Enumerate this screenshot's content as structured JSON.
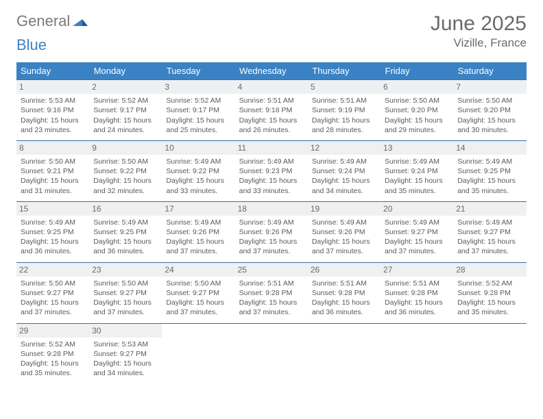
{
  "brand": {
    "name_a": "General",
    "name_b": "Blue"
  },
  "title": "June 2025",
  "location": "Vizille, France",
  "colors": {
    "header_bg": "#3a82c4",
    "header_text": "#ffffff",
    "daynum_bg": "#eef0f1",
    "row_border": "#3a6ea5",
    "text": "#5a5a5a",
    "title": "#6a6a6a"
  },
  "dow": [
    "Sunday",
    "Monday",
    "Tuesday",
    "Wednesday",
    "Thursday",
    "Friday",
    "Saturday"
  ],
  "weeks": [
    [
      {
        "d": "1",
        "sr": "Sunrise: 5:53 AM",
        "ss": "Sunset: 9:16 PM",
        "dl1": "Daylight: 15 hours",
        "dl2": "and 23 minutes."
      },
      {
        "d": "2",
        "sr": "Sunrise: 5:52 AM",
        "ss": "Sunset: 9:17 PM",
        "dl1": "Daylight: 15 hours",
        "dl2": "and 24 minutes."
      },
      {
        "d": "3",
        "sr": "Sunrise: 5:52 AM",
        "ss": "Sunset: 9:17 PM",
        "dl1": "Daylight: 15 hours",
        "dl2": "and 25 minutes."
      },
      {
        "d": "4",
        "sr": "Sunrise: 5:51 AM",
        "ss": "Sunset: 9:18 PM",
        "dl1": "Daylight: 15 hours",
        "dl2": "and 26 minutes."
      },
      {
        "d": "5",
        "sr": "Sunrise: 5:51 AM",
        "ss": "Sunset: 9:19 PM",
        "dl1": "Daylight: 15 hours",
        "dl2": "and 28 minutes."
      },
      {
        "d": "6",
        "sr": "Sunrise: 5:50 AM",
        "ss": "Sunset: 9:20 PM",
        "dl1": "Daylight: 15 hours",
        "dl2": "and 29 minutes."
      },
      {
        "d": "7",
        "sr": "Sunrise: 5:50 AM",
        "ss": "Sunset: 9:20 PM",
        "dl1": "Daylight: 15 hours",
        "dl2": "and 30 minutes."
      }
    ],
    [
      {
        "d": "8",
        "sr": "Sunrise: 5:50 AM",
        "ss": "Sunset: 9:21 PM",
        "dl1": "Daylight: 15 hours",
        "dl2": "and 31 minutes."
      },
      {
        "d": "9",
        "sr": "Sunrise: 5:50 AM",
        "ss": "Sunset: 9:22 PM",
        "dl1": "Daylight: 15 hours",
        "dl2": "and 32 minutes."
      },
      {
        "d": "10",
        "sr": "Sunrise: 5:49 AM",
        "ss": "Sunset: 9:22 PM",
        "dl1": "Daylight: 15 hours",
        "dl2": "and 33 minutes."
      },
      {
        "d": "11",
        "sr": "Sunrise: 5:49 AM",
        "ss": "Sunset: 9:23 PM",
        "dl1": "Daylight: 15 hours",
        "dl2": "and 33 minutes."
      },
      {
        "d": "12",
        "sr": "Sunrise: 5:49 AM",
        "ss": "Sunset: 9:24 PM",
        "dl1": "Daylight: 15 hours",
        "dl2": "and 34 minutes."
      },
      {
        "d": "13",
        "sr": "Sunrise: 5:49 AM",
        "ss": "Sunset: 9:24 PM",
        "dl1": "Daylight: 15 hours",
        "dl2": "and 35 minutes."
      },
      {
        "d": "14",
        "sr": "Sunrise: 5:49 AM",
        "ss": "Sunset: 9:25 PM",
        "dl1": "Daylight: 15 hours",
        "dl2": "and 35 minutes."
      }
    ],
    [
      {
        "d": "15",
        "sr": "Sunrise: 5:49 AM",
        "ss": "Sunset: 9:25 PM",
        "dl1": "Daylight: 15 hours",
        "dl2": "and 36 minutes."
      },
      {
        "d": "16",
        "sr": "Sunrise: 5:49 AM",
        "ss": "Sunset: 9:25 PM",
        "dl1": "Daylight: 15 hours",
        "dl2": "and 36 minutes."
      },
      {
        "d": "17",
        "sr": "Sunrise: 5:49 AM",
        "ss": "Sunset: 9:26 PM",
        "dl1": "Daylight: 15 hours",
        "dl2": "and 37 minutes."
      },
      {
        "d": "18",
        "sr": "Sunrise: 5:49 AM",
        "ss": "Sunset: 9:26 PM",
        "dl1": "Daylight: 15 hours",
        "dl2": "and 37 minutes."
      },
      {
        "d": "19",
        "sr": "Sunrise: 5:49 AM",
        "ss": "Sunset: 9:26 PM",
        "dl1": "Daylight: 15 hours",
        "dl2": "and 37 minutes."
      },
      {
        "d": "20",
        "sr": "Sunrise: 5:49 AM",
        "ss": "Sunset: 9:27 PM",
        "dl1": "Daylight: 15 hours",
        "dl2": "and 37 minutes."
      },
      {
        "d": "21",
        "sr": "Sunrise: 5:49 AM",
        "ss": "Sunset: 9:27 PM",
        "dl1": "Daylight: 15 hours",
        "dl2": "and 37 minutes."
      }
    ],
    [
      {
        "d": "22",
        "sr": "Sunrise: 5:50 AM",
        "ss": "Sunset: 9:27 PM",
        "dl1": "Daylight: 15 hours",
        "dl2": "and 37 minutes."
      },
      {
        "d": "23",
        "sr": "Sunrise: 5:50 AM",
        "ss": "Sunset: 9:27 PM",
        "dl1": "Daylight: 15 hours",
        "dl2": "and 37 minutes."
      },
      {
        "d": "24",
        "sr": "Sunrise: 5:50 AM",
        "ss": "Sunset: 9:27 PM",
        "dl1": "Daylight: 15 hours",
        "dl2": "and 37 minutes."
      },
      {
        "d": "25",
        "sr": "Sunrise: 5:51 AM",
        "ss": "Sunset: 9:28 PM",
        "dl1": "Daylight: 15 hours",
        "dl2": "and 37 minutes."
      },
      {
        "d": "26",
        "sr": "Sunrise: 5:51 AM",
        "ss": "Sunset: 9:28 PM",
        "dl1": "Daylight: 15 hours",
        "dl2": "and 36 minutes."
      },
      {
        "d": "27",
        "sr": "Sunrise: 5:51 AM",
        "ss": "Sunset: 9:28 PM",
        "dl1": "Daylight: 15 hours",
        "dl2": "and 36 minutes."
      },
      {
        "d": "28",
        "sr": "Sunrise: 5:52 AM",
        "ss": "Sunset: 9:28 PM",
        "dl1": "Daylight: 15 hours",
        "dl2": "and 35 minutes."
      }
    ],
    [
      {
        "d": "29",
        "sr": "Sunrise: 5:52 AM",
        "ss": "Sunset: 9:28 PM",
        "dl1": "Daylight: 15 hours",
        "dl2": "and 35 minutes."
      },
      {
        "d": "30",
        "sr": "Sunrise: 5:53 AM",
        "ss": "Sunset: 9:27 PM",
        "dl1": "Daylight: 15 hours",
        "dl2": "and 34 minutes."
      },
      null,
      null,
      null,
      null,
      null
    ]
  ]
}
